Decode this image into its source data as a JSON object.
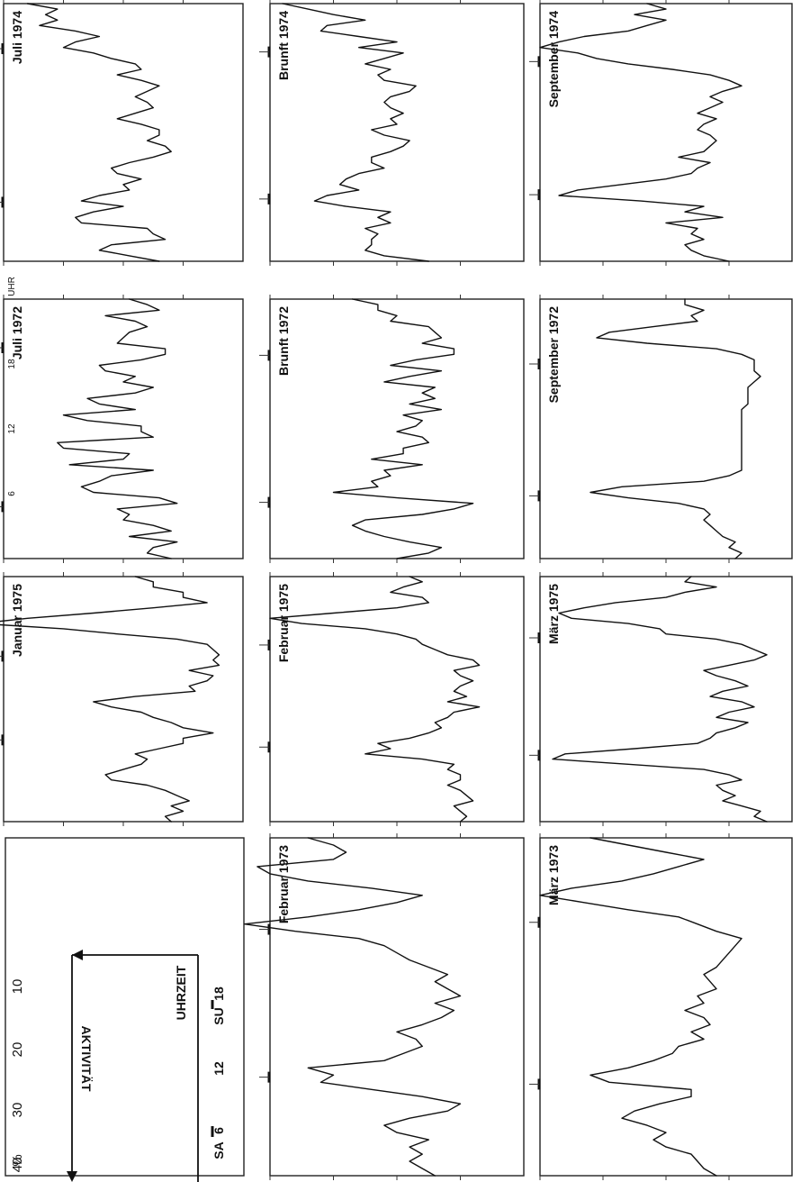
{
  "chart_data": {
    "type": "line",
    "layout": "small multiples, figure rotated 90 degrees counter-clockwise",
    "legend": {
      "y_unit": "%",
      "y_ticks": [
        10,
        20,
        30,
        40
      ],
      "y_label": "AKTIVITÄT",
      "x_label": "UHRZEIT",
      "x_ticks": [
        6,
        12,
        18
      ],
      "sunrise_label": "SA",
      "sunset_label": "SU"
    },
    "x_unit_label": "UHR",
    "x_ticks": [
      6,
      12,
      18
    ],
    "xlim": [
      0,
      24
    ],
    "ylim": [
      0,
      40
    ],
    "panels": [
      {
        "title": "Juli 1974",
        "sunrise": 5.5,
        "sunset": 19.8,
        "values": [
          14,
          19,
          24,
          22,
          13,
          15,
          16,
          27,
          28,
          25,
          20,
          27,
          24,
          19,
          20,
          17,
          21,
          22,
          19,
          15,
          12,
          13,
          16,
          14,
          14,
          17,
          21,
          18,
          15,
          16,
          18,
          16,
          14,
          17,
          21,
          17,
          18,
          22,
          25,
          30,
          28,
          24,
          28,
          34,
          31,
          33,
          31,
          36
        ]
      },
      {
        "title": "Juli 1972",
        "sunrise": 4.8,
        "sunset": 19.5,
        "values": [
          12,
          16,
          15,
          11,
          19,
          12,
          15,
          20,
          19,
          21,
          11,
          14,
          25,
          27,
          24,
          22,
          15,
          29,
          20,
          19,
          30,
          31,
          15,
          17,
          17,
          26,
          30,
          18,
          24,
          26,
          18,
          15,
          20,
          18,
          23,
          24,
          17,
          13,
          13,
          21,
          20,
          19,
          16,
          18,
          23,
          14,
          16,
          19
        ]
      },
      {
        "title": "Brunft 1974",
        "sunrise": 5.8,
        "sunset": 19.5,
        "values": [
          15,
          22,
          25,
          24,
          24,
          23,
          25,
          21,
          23,
          21,
          28,
          33,
          31,
          26,
          29,
          28,
          26,
          22,
          24,
          24,
          21,
          19,
          18,
          22,
          24,
          20,
          21,
          19,
          21,
          22,
          21,
          18,
          17,
          22,
          23,
          21,
          25,
          22,
          19,
          26,
          20,
          26,
          32,
          31,
          25,
          30,
          34,
          38
        ]
      },
      {
        "title": "Brunft 1972",
        "sunrise": 5.2,
        "sunset": 18.8,
        "values": [
          20,
          15,
          13,
          18,
          22,
          25,
          27,
          25,
          16,
          11,
          8,
          20,
          30,
          23,
          24,
          21,
          22,
          16,
          24,
          19,
          19,
          15,
          16,
          20,
          17,
          16,
          19,
          13,
          18,
          14,
          16,
          14,
          22,
          18,
          13,
          21,
          17,
          11,
          11,
          16,
          13,
          14,
          15,
          21,
          20,
          23,
          23,
          27
        ]
      },
      {
        "title": "September 1974",
        "sunrise": 6.2,
        "sunset": 18.6,
        "values": [
          10,
          14,
          16,
          17,
          14,
          16,
          15,
          20,
          11,
          17,
          14,
          24,
          37,
          34,
          27,
          20,
          16,
          15,
          13,
          18,
          14,
          13,
          12,
          13,
          15,
          14,
          12,
          15,
          13,
          11,
          13,
          11,
          8,
          10,
          13,
          19,
          26,
          31,
          34,
          40,
          37,
          33,
          26,
          23,
          20,
          25,
          20,
          23
        ]
      },
      {
        "title": "September 1972",
        "sunrise": 5.8,
        "sunset": 18.0,
        "values": [
          9,
          8,
          10,
          9,
          11,
          12,
          13,
          14,
          13,
          14,
          18,
          26,
          32,
          27,
          14,
          10,
          8,
          8,
          8,
          8,
          8,
          8,
          8,
          8,
          8,
          8,
          8,
          8,
          7,
          7,
          7,
          7,
          6,
          5,
          6,
          6,
          6,
          8,
          12,
          23,
          31,
          29,
          22,
          15,
          16,
          14,
          17,
          17
        ]
      },
      {
        "title": "Januar 1975",
        "sunrise": 8.0,
        "sunset": 16.2,
        "values": [
          12,
          13,
          10,
          12,
          9,
          11,
          13,
          16,
          22,
          23,
          20,
          17,
          16,
          18,
          14,
          10,
          10,
          5,
          10,
          12,
          15,
          17,
          22,
          25,
          18,
          8,
          9,
          6,
          5,
          9,
          4,
          5,
          4,
          5,
          6,
          11,
          21,
          30,
          44,
          36,
          25,
          15,
          6,
          10,
          10,
          15,
          15,
          18
        ]
      },
      {
        "title": "Februar 1975",
        "sunrise": 7.3,
        "sunset": 17.3,
        "values": [
          10,
          9,
          10,
          11,
          8,
          9,
          10,
          12,
          10,
          10,
          12,
          11,
          16,
          25,
          21,
          23,
          18,
          15,
          13,
          14,
          12,
          11,
          7,
          12,
          9,
          11,
          10,
          8,
          10,
          11,
          7,
          8,
          12,
          14,
          16,
          17,
          20,
          25,
          35,
          40,
          30,
          20,
          15,
          16,
          21,
          19,
          16,
          18
        ]
      },
      {
        "title": "März 1975",
        "sunrise": 6.5,
        "sunset": 18.0,
        "values": [
          4,
          6,
          5,
          8,
          11,
          9,
          11,
          12,
          8,
          10,
          14,
          26,
          38,
          36,
          25,
          15,
          13,
          12,
          9,
          7,
          12,
          10,
          6,
          8,
          13,
          11,
          7,
          9,
          12,
          14,
          10,
          6,
          4,
          6,
          8,
          12,
          20,
          21,
          26,
          35,
          37,
          33,
          28,
          20,
          17,
          12,
          17,
          16
        ]
      },
      {
        "title": "Februar 1973",
        "sunrise": 7.0,
        "sunset": 17.5,
        "values": [
          14,
          16,
          18,
          16,
          18,
          15,
          20,
          22,
          18,
          12,
          10,
          16,
          24,
          32,
          30,
          34,
          22,
          19,
          16,
          17,
          20,
          16,
          13,
          11,
          14,
          10,
          12,
          14,
          12,
          15,
          18,
          20,
          22,
          26,
          36,
          44,
          34,
          26,
          20,
          16,
          24,
          34,
          40,
          42,
          30,
          28,
          30,
          34
        ]
      },
      {
        "title": "März 1973",
        "sunrise": 6.5,
        "sunset": 18.0,
        "values": [
          12,
          14,
          15,
          16,
          20,
          22,
          20,
          23,
          27,
          25,
          21,
          16,
          16,
          29,
          32,
          26,
          22,
          19,
          18,
          14,
          16,
          13,
          14,
          17,
          14,
          15,
          12,
          13,
          14,
          12,
          11,
          10,
          9,
          8,
          12,
          15,
          18,
          26,
          33,
          40,
          35,
          27,
          22,
          18,
          14,
          20,
          26,
          32
        ]
      }
    ]
  }
}
